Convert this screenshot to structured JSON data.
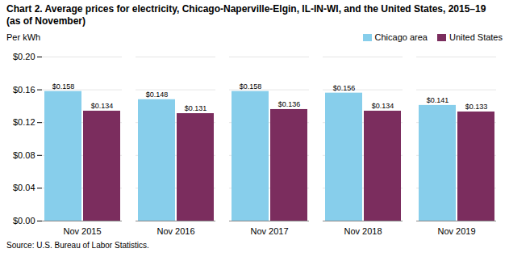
{
  "chart_data": {
    "type": "bar",
    "title": "Chart 2. Average prices for electricity, Chicago-Naperville-Elgin, IL-IN-WI, and the United States, 2015–19  (as of November)",
    "ylabel": "Per kWh",
    "source": "Source: U.S. Bureau of Labor Statistics.",
    "categories": [
      "Nov 2015",
      "Nov 2016",
      "Nov 2017",
      "Nov 2018",
      "Nov 2019"
    ],
    "series": [
      {
        "name": "Chicago area",
        "color": "#87CEEB",
        "values": [
          0.158,
          0.148,
          0.158,
          0.156,
          0.141
        ],
        "value_labels": [
          "$0.158",
          "$0.148",
          "$0.158",
          "$0.156",
          "$0.141"
        ]
      },
      {
        "name": "United States",
        "color": "#7B2D5E",
        "values": [
          0.134,
          0.131,
          0.136,
          0.134,
          0.133
        ],
        "value_labels": [
          "$0.134",
          "$0.131",
          "$0.136",
          "$0.134",
          "$0.133"
        ]
      }
    ],
    "ylim": [
      0.0,
      0.2
    ],
    "yticks": [
      {
        "value": 0.0,
        "label": "$0.00"
      },
      {
        "value": 0.04,
        "label": "$0.04"
      },
      {
        "value": 0.08,
        "label": "$0.08"
      },
      {
        "value": 0.12,
        "label": "$0.12"
      },
      {
        "value": 0.16,
        "label": "$0.16"
      },
      {
        "value": 0.2,
        "label": "$0.20"
      }
    ],
    "grid": true,
    "legend": "upper right",
    "data_labels": true
  }
}
